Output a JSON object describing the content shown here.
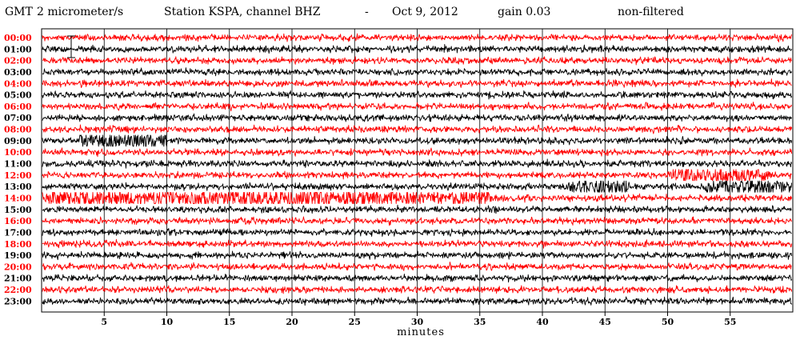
{
  "chart_data": {
    "type": "line",
    "title": {
      "prefix": "GMT",
      "units": "2 micrometer/s",
      "station": "Station KSPA, channel BHZ",
      "separator": "-",
      "date": "Oct  9, 2012",
      "gain": "gain 0.03",
      "filter": "non-filtered"
    },
    "xlabel": "minutes",
    "xlim": [
      0,
      60
    ],
    "xticks": [
      5,
      10,
      15,
      20,
      25,
      30,
      35,
      40,
      45,
      50,
      55
    ],
    "hours": [
      "00:00",
      "01:00",
      "02:00",
      "03:00",
      "04:00",
      "05:00",
      "06:00",
      "07:00",
      "08:00",
      "09:00",
      "10:00",
      "11:00",
      "12:00",
      "13:00",
      "14:00",
      "15:00",
      "16:00",
      "17:00",
      "18:00",
      "19:00",
      "20:00",
      "21:00",
      "22:00",
      "23:00"
    ],
    "series_colors": [
      "#ff0000",
      "#000000"
    ]
  }
}
